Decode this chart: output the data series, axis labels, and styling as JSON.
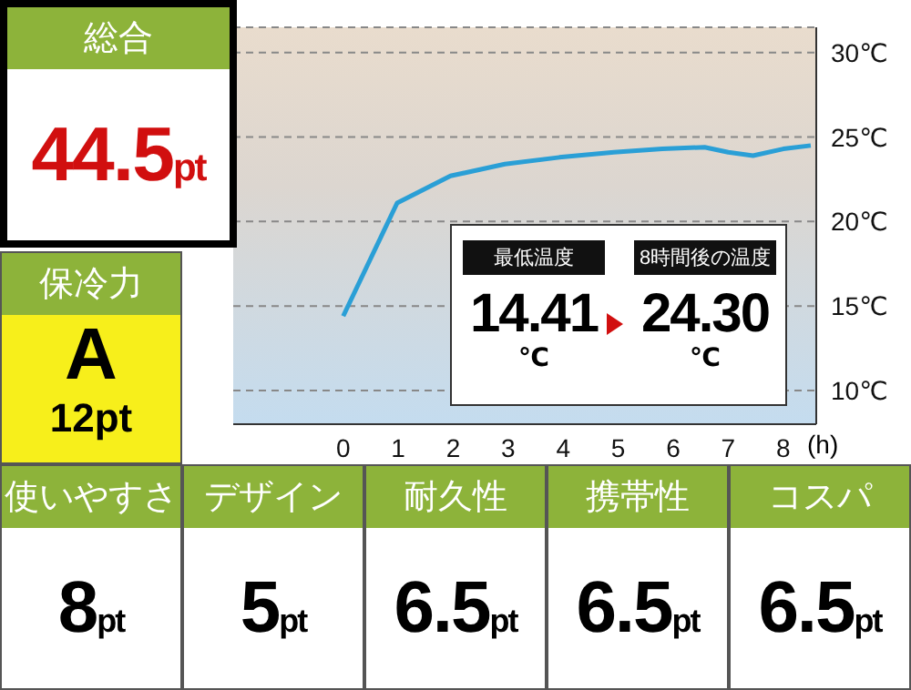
{
  "chart_data": [
    {
      "type": "other",
      "annotations": [
        "総合",
        "44.5pt",
        "保冷力",
        "A",
        "12pt",
        "使いやすさ",
        "8pt",
        "デザイン",
        "5pt",
        "耐久性",
        "6.5pt",
        "携帯性",
        "6.5pt",
        "コスパ",
        "6.5pt"
      ]
    },
    {
      "type": "line",
      "xlabel": "(h)",
      "x": [
        0,
        0.98,
        1.95,
        2.94,
        3.93,
        4.92,
        5.8,
        6.57,
        7.0,
        7.45,
        8.0,
        8.5
      ],
      "series": [
        {
          "color": "#2a9fd6",
          "values": [
            14.4,
            21.1,
            22.7,
            23.4,
            23.8,
            24.1,
            24.3,
            24.4,
            24.1,
            23.9,
            24.3,
            24.5
          ]
        }
      ],
      "xlim": [
        -2,
        8.6
      ],
      "ylim": [
        8,
        31.5
      ],
      "xticks": [
        0,
        1,
        2,
        3,
        4,
        5,
        6,
        7,
        8
      ],
      "yticks": [
        {
          "value": 10,
          "label": "10℃"
        },
        {
          "value": 15,
          "label": "15℃"
        },
        {
          "value": 20,
          "label": "20℃"
        },
        {
          "value": 25,
          "label": "25℃"
        },
        {
          "value": 30,
          "label": "30℃"
        }
      ],
      "grid": "y",
      "marker": "none",
      "line_style": "solid",
      "annotations": [
        "最低温度",
        "14.41",
        "℃",
        "8時間後の温度",
        "24.30",
        "℃"
      ]
    }
  ]
}
